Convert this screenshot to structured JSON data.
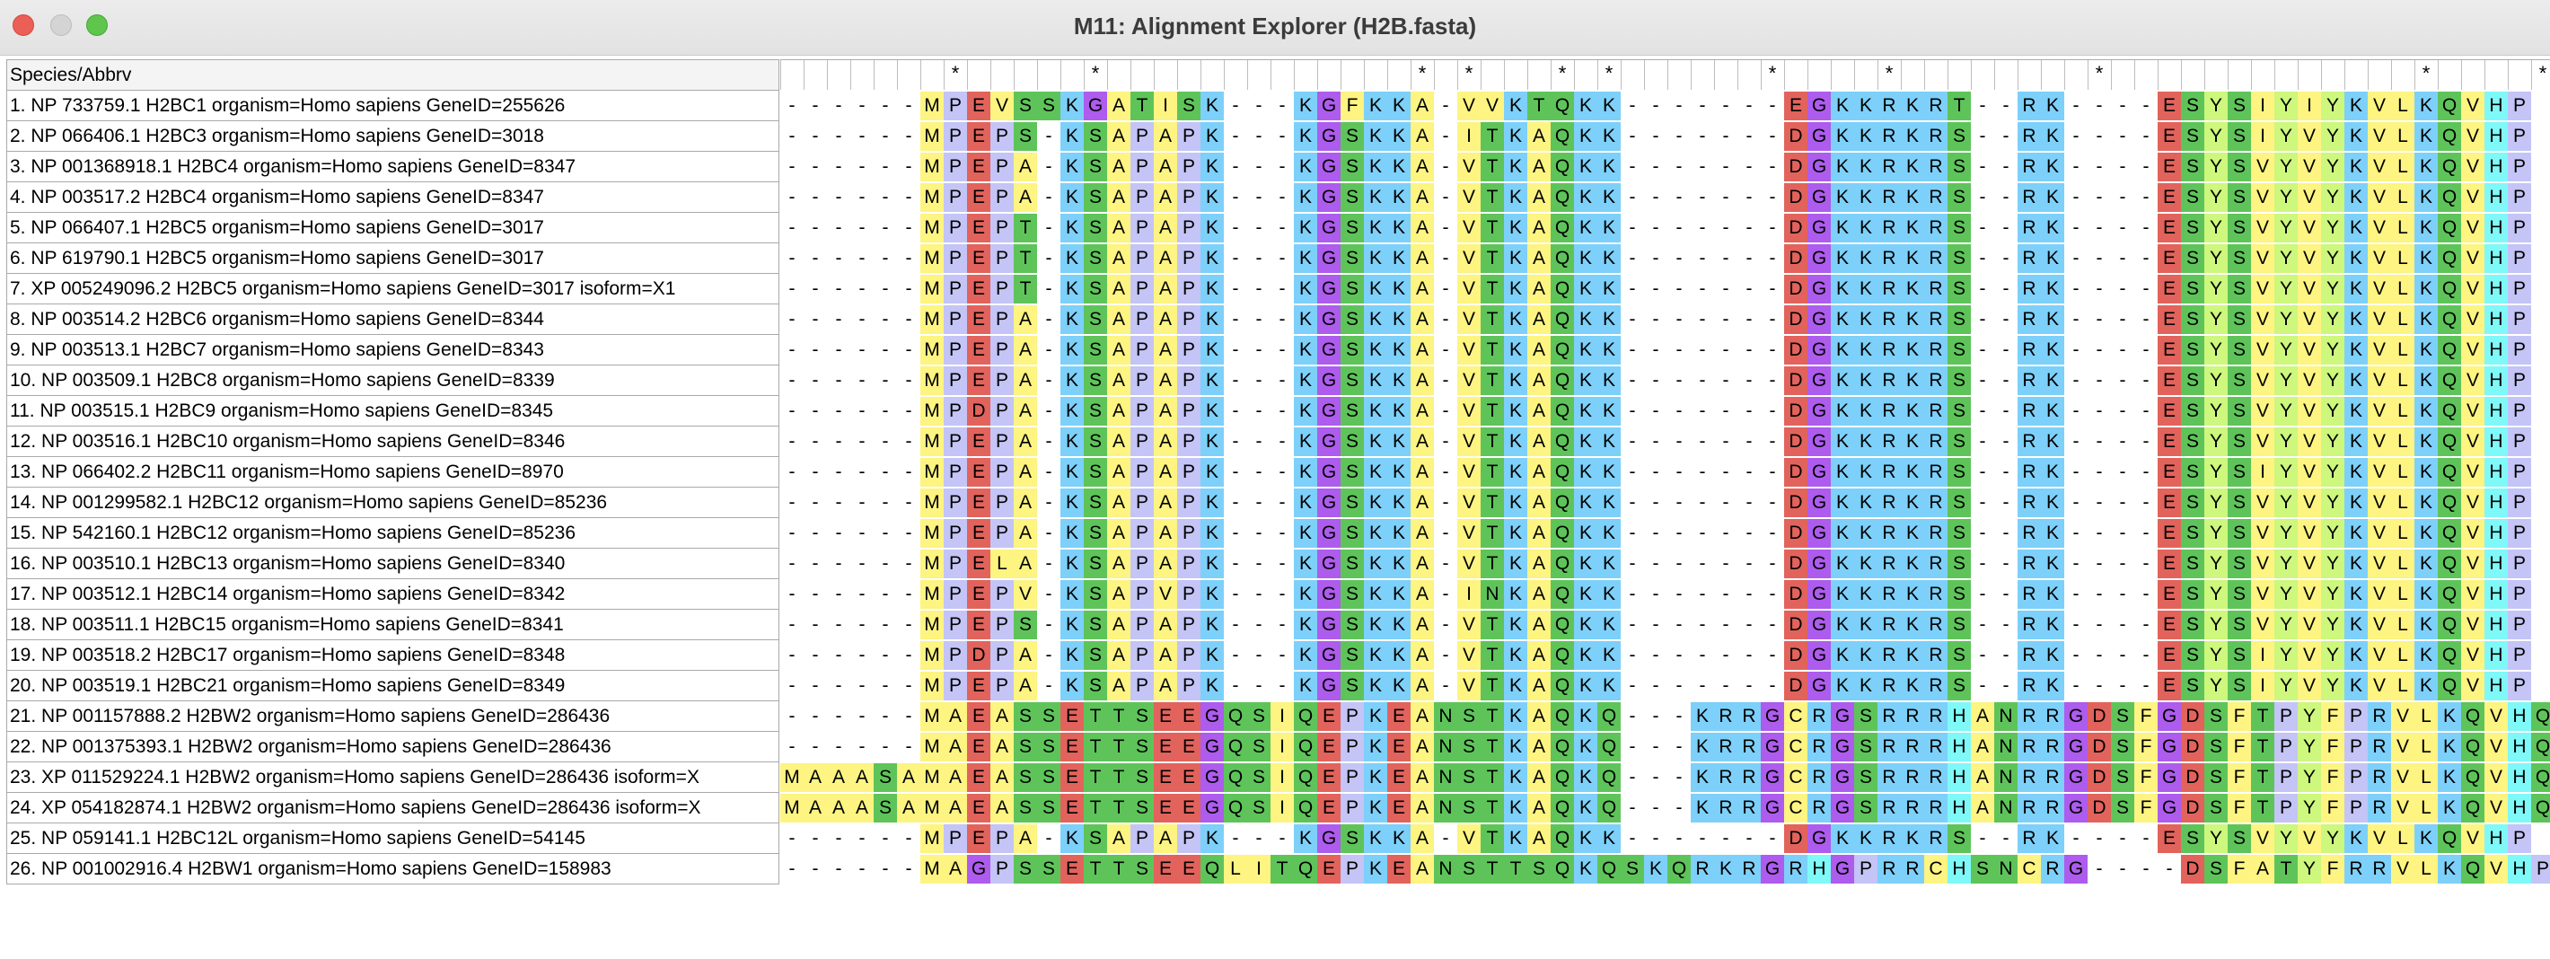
{
  "window": {
    "title": "M11: Alignment Explorer (H2B.fasta)"
  },
  "header": {
    "label": "Species/Abbrv"
  },
  "consensus": "       *     *             * *   * *      *    *        *             *    *        * * * * *",
  "colors": {
    "A": "#fdf481",
    "V": "#fdf481",
    "I": "#fdf481",
    "L": "#fdf481",
    "M": "#fdf481",
    "F": "#fdf481",
    "C": "#fdf481",
    "Y": "#cdf77d",
    "K": "#7dd0f9",
    "R": "#7dd0f9",
    "H": "#7ff8f8",
    "D": "#e2635c",
    "E": "#e2635c",
    "S": "#5ec45a",
    "T": "#5ec45a",
    "N": "#5ec45a",
    "Q": "#5ec45a",
    "G": "#ad5ced",
    "P": "#c4c4f6",
    "W": "#cdf77d"
  },
  "sequences": [
    {
      "name": "1. NP 733759.1 H2BC1 organism=Homo sapiens GeneID=255626",
      "seq": "------MPEVSSKGATISK---KGFKKA-VVKTQKK-------EGKKRKRT--RK----ESYSIYIYKVLKQVHP"
    },
    {
      "name": "2. NP 066406.1 H2BC3 organism=Homo sapiens GeneID=3018",
      "seq": "------MPEPS-KSAPAPK---KGSKKA-ITKAQKK-------DGKKRKRS--RK----ESYSIYVYKVLKQVHP"
    },
    {
      "name": "3. NP 001368918.1 H2BC4 organism=Homo sapiens GeneID=8347",
      "seq": "------MPEPA-KSAPAPK---KGSKKA-VTKAQKK-------DGKKRKRS--RK----ESYSVYVYKVLKQVHP"
    },
    {
      "name": "4. NP 003517.2 H2BC4 organism=Homo sapiens GeneID=8347",
      "seq": "------MPEPA-KSAPAPK---KGSKKA-VTKAQKK-------DGKKRKRS--RK----ESYSVYVYKVLKQVHP"
    },
    {
      "name": "5. NP 066407.1 H2BC5 organism=Homo sapiens GeneID=3017",
      "seq": "------MPEPT-KSAPAPK---KGSKKA-VTKAQKK-------DGKKRKRS--RK----ESYSVYVYKVLKQVHP"
    },
    {
      "name": "6. NP 619790.1 H2BC5 organism=Homo sapiens GeneID=3017",
      "seq": "------MPEPT-KSAPAPK---KGSKKA-VTKAQKK-------DGKKRKRS--RK----ESYSVYVYKVLKQVHP"
    },
    {
      "name": "7. XP 005249096.2 H2BC5 organism=Homo sapiens GeneID=3017 isoform=X1",
      "seq": "------MPEPT-KSAPAPK---KGSKKA-VTKAQKK-------DGKKRKRS--RK----ESYSVYVYKVLKQVHP"
    },
    {
      "name": "8. NP 003514.2 H2BC6 organism=Homo sapiens GeneID=8344",
      "seq": "------MPEPA-KSAPAPK---KGSKKA-VTKAQKK-------DGKKRKRS--RK----ESYSVYVYKVLKQVHP"
    },
    {
      "name": "9. NP 003513.1 H2BC7 organism=Homo sapiens GeneID=8343",
      "seq": "------MPEPA-KSAPAPK---KGSKKA-VTKAQKK-------DGKKRKRS--RK----ESYSVYVYKVLKQVHP"
    },
    {
      "name": "10. NP 003509.1 H2BC8 organism=Homo sapiens GeneID=8339",
      "seq": "------MPEPA-KSAPAPK---KGSKKA-VTKAQKK-------DGKKRKRS--RK----ESYSVYVYKVLKQVHP"
    },
    {
      "name": "11. NP 003515.1 H2BC9 organism=Homo sapiens GeneID=8345",
      "seq": "------MPDPA-KSAPAPK---KGSKKA-VTKAQKK-------DGKKRKRS--RK----ESYSVYVYKVLKQVHP"
    },
    {
      "name": "12. NP 003516.1 H2BC10 organism=Homo sapiens GeneID=8346",
      "seq": "------MPEPA-KSAPAPK---KGSKKA-VTKAQKK-------DGKKRKRS--RK----ESYSVYVYKVLKQVHP"
    },
    {
      "name": "13. NP 066402.2 H2BC11 organism=Homo sapiens GeneID=8970",
      "seq": "------MPEPA-KSAPAPK---KGSKKA-VTKAQKK-------DGKKRKRS--RK----ESYSIYVYKVLKQVHP"
    },
    {
      "name": "14. NP 001299582.1 H2BC12 organism=Homo sapiens GeneID=85236",
      "seq": "------MPEPA-KSAPAPK---KGSKKA-VTKAQKK-------DGKKRKRS--RK----ESYSVYVYKVLKQVHP"
    },
    {
      "name": "15. NP 542160.1 H2BC12 organism=Homo sapiens GeneID=85236",
      "seq": "------MPEPA-KSAPAPK---KGSKKA-VTKAQKK-------DGKKRKRS--RK----ESYSVYVYKVLKQVHP"
    },
    {
      "name": "16. NP 003510.1 H2BC13 organism=Homo sapiens GeneID=8340",
      "seq": "------MPELA-KSAPAPK---KGSKKA-VTKAQKK-------DGKKRKRS--RK----ESYSVYVYKVLKQVHP"
    },
    {
      "name": "17. NP 003512.1 H2BC14 organism=Homo sapiens GeneID=8342",
      "seq": "------MPEPV-KSAPVPK---KGSKKA-INKAQKK-------DGKKRKRS--RK----ESYSVYVYKVLKQVHP"
    },
    {
      "name": "18. NP 003511.1 H2BC15 organism=Homo sapiens GeneID=8341",
      "seq": "------MPEPS-KSAPAPK---KGSKKA-VTKAQKK-------DGKKRKRS--RK----ESYSVYVYKVLKQVHP"
    },
    {
      "name": "19. NP 003518.2 H2BC17 organism=Homo sapiens GeneID=8348",
      "seq": "------MPDPA-KSAPAPK---KGSKKA-VTKAQKK-------DGKKRKRS--RK----ESYSIYVYKVLKQVHP"
    },
    {
      "name": "20. NP 003519.1 H2BC21 organism=Homo sapiens GeneID=8349",
      "seq": "------MPEPA-KSAPAPK---KGSKKA-VTKAQKK-------DGKKRKRS--RK----ESYSIYVYKVLKQVHP"
    },
    {
      "name": "21. NP 001157888.2 H2BW2 organism=Homo sapiens GeneID=286436",
      "seq": "------MAEASSETTSEEGQSIQEPKEANSTKAQKQ---KRRGCRGSRRRHANRRGDSFGDSFTPYFPRVLKQVHQ"
    },
    {
      "name": "22. NP 001375393.1 H2BW2 organism=Homo sapiens GeneID=286436",
      "seq": "------MAEASSETTSEEGQSIQEPKEANSTKAQKQ---KRRGCRGSRRRHANRRGDSFGDSFTPYFPRVLKQVHQ"
    },
    {
      "name": "23. XP 011529224.1 H2BW2 organism=Homo sapiens GeneID=286436 isoform=X",
      "seq": "MAAASAMAEASSETTSEEGQSIQEPKEANSTKAQKQ---KRRGCRGSRRRHANRRGDSFGDSFTPYFPRVLKQVHQ"
    },
    {
      "name": "24. XP 054182874.1 H2BW2 organism=Homo sapiens GeneID=286436 isoform=X",
      "seq": "MAAASAMAEASSETTSEEGQSIQEPKEANSTKAQKQ---KRRGCRGSRRRHANRRGDSFGDSFTPYFPRVLKQVHQ"
    },
    {
      "name": "25. NP 059141.1 H2BC12L organism=Homo sapiens GeneID=54145",
      "seq": "------MPEPA-KSAPAPK---KGSKKA-VTKAQKK-------DGKKRKRS--RK----ESYSVYVYKVLKQVHP"
    },
    {
      "name": "26. NP 001002916.4 H2BW1 organism=Homo sapiens GeneID=158983",
      "seq": "------MAGPSSETTSEEQLITQEPKEANSTTSQKQSKQRKRGRHGPRRCHSNCRG----DSFATYFRRVLKQVHP"
    }
  ]
}
